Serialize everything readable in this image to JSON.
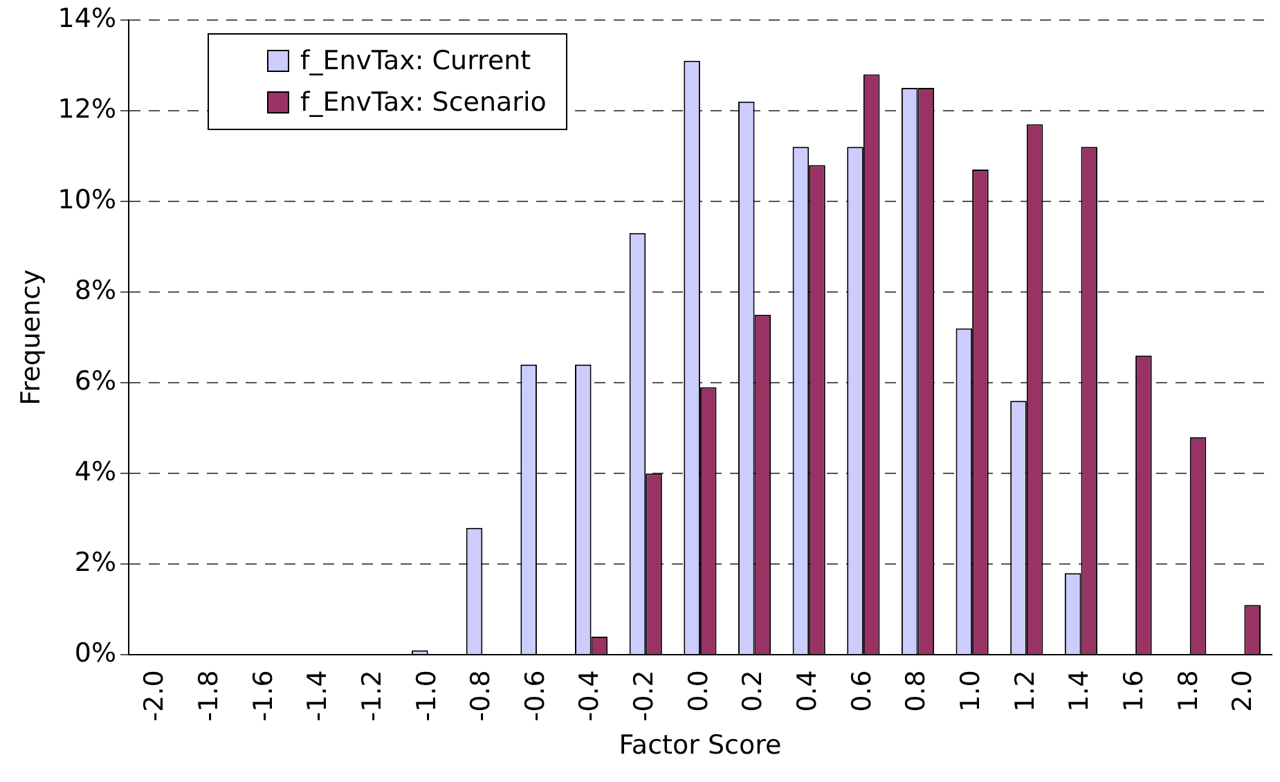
{
  "chart_data": {
    "type": "bar",
    "xlabel": "Factor Score",
    "ylabel": "Frequency",
    "categories": [
      "-2.0",
      "-1.8",
      "-1.6",
      "-1.4",
      "-1.2",
      "-1.0",
      "-0.8",
      "-0.6",
      "-0.4",
      "-0.2",
      "0.0",
      "0.2",
      "0.4",
      "0.6",
      "0.8",
      "1.0",
      "1.2",
      "1.4",
      "1.6",
      "1.8",
      "2.0"
    ],
    "series": [
      {
        "name": "f_EnvTax: Current",
        "color": "#ccccff",
        "values": [
          0,
          0,
          0,
          0,
          0,
          0.1,
          2.8,
          6.4,
          6.4,
          9.3,
          13.1,
          12.2,
          11.2,
          11.2,
          12.5,
          7.2,
          5.6,
          1.8,
          0,
          0,
          0
        ]
      },
      {
        "name": "f_EnvTax: Scenario",
        "color": "#993366",
        "values": [
          0,
          0,
          0,
          0,
          0,
          0,
          0,
          0,
          0.4,
          4.0,
          5.9,
          7.5,
          10.8,
          12.8,
          12.5,
          10.7,
          11.7,
          11.2,
          6.6,
          4.8,
          1.1
        ]
      }
    ],
    "ylim": [
      0,
      14
    ],
    "yticks": [
      {
        "value": 0,
        "label": "0%"
      },
      {
        "value": 2,
        "label": "2%"
      },
      {
        "value": 4,
        "label": "4%"
      },
      {
        "value": 6,
        "label": "6%"
      },
      {
        "value": 8,
        "label": "8%"
      },
      {
        "value": 10,
        "label": "10%"
      },
      {
        "value": 12,
        "label": "12%"
      },
      {
        "value": 14,
        "label": "14%"
      }
    ],
    "grid": "y",
    "legend": "top left"
  }
}
